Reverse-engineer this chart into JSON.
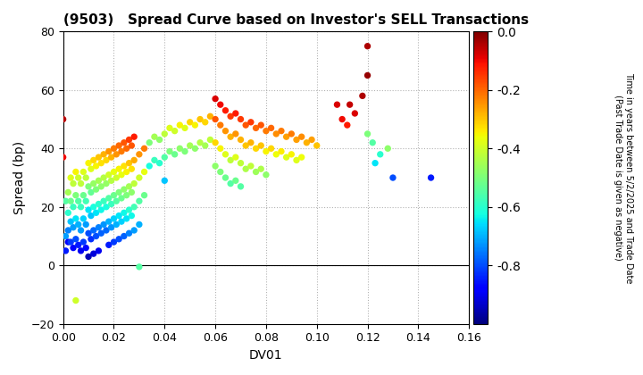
{
  "title": "(9503)   Spread Curve based on Investor's SELL Transactions",
  "xlabel": "DV01",
  "ylabel": "Spread (bp)",
  "xlim": [
    0.0,
    0.16
  ],
  "ylim": [
    -20,
    80
  ],
  "xticks": [
    0.0,
    0.02,
    0.04,
    0.06,
    0.08,
    0.1,
    0.12,
    0.14,
    0.16
  ],
  "yticks": [
    -20,
    0,
    20,
    40,
    60,
    80
  ],
  "colorbar_label": "Time in years between 5/2/2025 and Trade Date\n(Past Trade Date is given as negative)",
  "clim": [
    -1.0,
    0.0
  ],
  "cbar_ticks": [
    0.0,
    -0.2,
    -0.4,
    -0.6,
    -0.8
  ],
  "background_color": "#ffffff",
  "points": [
    [
      0.0,
      50.0,
      -0.05
    ],
    [
      0.0,
      37.0,
      -0.1
    ],
    [
      0.001,
      22.0,
      -0.55
    ],
    [
      0.001,
      10.0,
      -0.72
    ],
    [
      0.001,
      5.0,
      -0.85
    ],
    [
      0.002,
      25.0,
      -0.45
    ],
    [
      0.002,
      18.0,
      -0.6
    ],
    [
      0.002,
      12.0,
      -0.75
    ],
    [
      0.002,
      8.0,
      -0.88
    ],
    [
      0.003,
      30.0,
      -0.38
    ],
    [
      0.003,
      22.0,
      -0.52
    ],
    [
      0.003,
      15.0,
      -0.68
    ],
    [
      0.003,
      8.0,
      -0.82
    ],
    [
      0.004,
      28.0,
      -0.42
    ],
    [
      0.004,
      20.0,
      -0.58
    ],
    [
      0.004,
      13.0,
      -0.72
    ],
    [
      0.004,
      6.0,
      -0.88
    ],
    [
      0.005,
      32.0,
      -0.35
    ],
    [
      0.005,
      24.0,
      -0.5
    ],
    [
      0.005,
      16.0,
      -0.65
    ],
    [
      0.005,
      9.0,
      -0.8
    ],
    [
      0.006,
      30.0,
      -0.4
    ],
    [
      0.006,
      22.0,
      -0.55
    ],
    [
      0.006,
      14.0,
      -0.7
    ],
    [
      0.006,
      7.0,
      -0.85
    ],
    [
      0.007,
      28.0,
      -0.42
    ],
    [
      0.007,
      20.0,
      -0.58
    ],
    [
      0.007,
      12.0,
      -0.72
    ],
    [
      0.007,
      5.0,
      -0.9
    ],
    [
      0.008,
      32.0,
      -0.38
    ],
    [
      0.008,
      24.0,
      -0.52
    ],
    [
      0.008,
      16.0,
      -0.67
    ],
    [
      0.008,
      8.0,
      -0.82
    ],
    [
      0.009,
      30.0,
      -0.42
    ],
    [
      0.009,
      22.0,
      -0.57
    ],
    [
      0.009,
      14.0,
      -0.72
    ],
    [
      0.009,
      6.0,
      -0.87
    ],
    [
      0.01,
      35.0,
      -0.35
    ],
    [
      0.01,
      27.0,
      -0.5
    ],
    [
      0.01,
      19.0,
      -0.65
    ],
    [
      0.01,
      11.0,
      -0.8
    ],
    [
      0.01,
      3.0,
      -0.95
    ],
    [
      0.011,
      33.0,
      -0.38
    ],
    [
      0.011,
      25.0,
      -0.53
    ],
    [
      0.011,
      17.0,
      -0.68
    ],
    [
      0.011,
      9.0,
      -0.83
    ],
    [
      0.012,
      36.0,
      -0.32
    ],
    [
      0.012,
      28.0,
      -0.47
    ],
    [
      0.012,
      20.0,
      -0.62
    ],
    [
      0.012,
      12.0,
      -0.77
    ],
    [
      0.012,
      4.0,
      -0.92
    ],
    [
      0.013,
      34.0,
      -0.35
    ],
    [
      0.013,
      26.0,
      -0.5
    ],
    [
      0.013,
      18.0,
      -0.65
    ],
    [
      0.013,
      10.0,
      -0.8
    ],
    [
      0.014,
      37.0,
      -0.3
    ],
    [
      0.014,
      29.0,
      -0.45
    ],
    [
      0.014,
      21.0,
      -0.6
    ],
    [
      0.014,
      13.0,
      -0.75
    ],
    [
      0.014,
      5.0,
      -0.9
    ],
    [
      0.015,
      35.0,
      -0.33
    ],
    [
      0.015,
      27.0,
      -0.48
    ],
    [
      0.015,
      19.0,
      -0.63
    ],
    [
      0.015,
      11.0,
      -0.78
    ],
    [
      0.016,
      38.0,
      -0.28
    ],
    [
      0.016,
      30.0,
      -0.43
    ],
    [
      0.016,
      22.0,
      -0.58
    ],
    [
      0.016,
      14.0,
      -0.73
    ],
    [
      0.017,
      36.0,
      -0.32
    ],
    [
      0.017,
      28.0,
      -0.47
    ],
    [
      0.017,
      20.0,
      -0.62
    ],
    [
      0.017,
      12.0,
      -0.77
    ],
    [
      0.018,
      39.0,
      -0.25
    ],
    [
      0.018,
      31.0,
      -0.4
    ],
    [
      0.018,
      23.0,
      -0.55
    ],
    [
      0.018,
      15.0,
      -0.7
    ],
    [
      0.018,
      7.0,
      -0.85
    ],
    [
      0.019,
      37.0,
      -0.28
    ],
    [
      0.019,
      29.0,
      -0.43
    ],
    [
      0.019,
      21.0,
      -0.58
    ],
    [
      0.019,
      13.0,
      -0.73
    ],
    [
      0.02,
      40.0,
      -0.22
    ],
    [
      0.02,
      32.0,
      -0.37
    ],
    [
      0.02,
      24.0,
      -0.52
    ],
    [
      0.02,
      16.0,
      -0.67
    ],
    [
      0.02,
      8.0,
      -0.82
    ],
    [
      0.021,
      38.0,
      -0.25
    ],
    [
      0.021,
      30.0,
      -0.4
    ],
    [
      0.021,
      22.0,
      -0.55
    ],
    [
      0.021,
      14.0,
      -0.7
    ],
    [
      0.022,
      41.0,
      -0.2
    ],
    [
      0.022,
      33.0,
      -0.35
    ],
    [
      0.022,
      25.0,
      -0.5
    ],
    [
      0.022,
      17.0,
      -0.65
    ],
    [
      0.022,
      9.0,
      -0.8
    ],
    [
      0.023,
      39.0,
      -0.22
    ],
    [
      0.023,
      31.0,
      -0.37
    ],
    [
      0.023,
      23.0,
      -0.52
    ],
    [
      0.023,
      15.0,
      -0.67
    ],
    [
      0.024,
      42.0,
      -0.18
    ],
    [
      0.024,
      34.0,
      -0.33
    ],
    [
      0.024,
      26.0,
      -0.48
    ],
    [
      0.024,
      18.0,
      -0.63
    ],
    [
      0.024,
      10.0,
      -0.78
    ],
    [
      0.025,
      40.0,
      -0.2
    ],
    [
      0.025,
      32.0,
      -0.35
    ],
    [
      0.025,
      24.0,
      -0.5
    ],
    [
      0.025,
      16.0,
      -0.65
    ],
    [
      0.026,
      43.0,
      -0.15
    ],
    [
      0.026,
      35.0,
      -0.3
    ],
    [
      0.026,
      27.0,
      -0.45
    ],
    [
      0.026,
      19.0,
      -0.6
    ],
    [
      0.026,
      11.0,
      -0.75
    ],
    [
      0.027,
      41.0,
      -0.18
    ],
    [
      0.027,
      33.0,
      -0.33
    ],
    [
      0.027,
      25.0,
      -0.48
    ],
    [
      0.027,
      17.0,
      -0.63
    ],
    [
      0.028,
      44.0,
      -0.12
    ],
    [
      0.028,
      36.0,
      -0.27
    ],
    [
      0.028,
      28.0,
      -0.42
    ],
    [
      0.028,
      20.0,
      -0.57
    ],
    [
      0.028,
      12.0,
      -0.72
    ],
    [
      0.03,
      38.0,
      -0.25
    ],
    [
      0.03,
      30.0,
      -0.4
    ],
    [
      0.03,
      22.0,
      -0.55
    ],
    [
      0.03,
      14.0,
      -0.7
    ],
    [
      0.03,
      -0.5,
      -0.55
    ],
    [
      0.032,
      40.0,
      -0.22
    ],
    [
      0.032,
      32.0,
      -0.37
    ],
    [
      0.032,
      24.0,
      -0.52
    ],
    [
      0.034,
      42.0,
      -0.5
    ],
    [
      0.034,
      34.0,
      -0.62
    ],
    [
      0.036,
      44.0,
      -0.45
    ],
    [
      0.036,
      36.0,
      -0.58
    ],
    [
      0.038,
      43.0,
      -0.48
    ],
    [
      0.038,
      35.0,
      -0.6
    ],
    [
      0.04,
      45.0,
      -0.42
    ],
    [
      0.04,
      37.0,
      -0.55
    ],
    [
      0.04,
      29.0,
      -0.68
    ],
    [
      0.042,
      47.0,
      -0.38
    ],
    [
      0.042,
      39.0,
      -0.5
    ],
    [
      0.044,
      46.0,
      -0.4
    ],
    [
      0.044,
      38.0,
      -0.52
    ],
    [
      0.046,
      48.0,
      -0.35
    ],
    [
      0.046,
      40.0,
      -0.48
    ],
    [
      0.048,
      47.0,
      -0.38
    ],
    [
      0.048,
      39.0,
      -0.5
    ],
    [
      0.05,
      49.0,
      -0.32
    ],
    [
      0.05,
      41.0,
      -0.45
    ],
    [
      0.052,
      48.0,
      -0.35
    ],
    [
      0.052,
      40.0,
      -0.48
    ],
    [
      0.054,
      50.0,
      -0.3
    ],
    [
      0.054,
      42.0,
      -0.43
    ],
    [
      0.056,
      49.0,
      -0.32
    ],
    [
      0.056,
      41.0,
      -0.45
    ],
    [
      0.058,
      51.0,
      -0.28
    ],
    [
      0.058,
      43.0,
      -0.42
    ],
    [
      0.06,
      57.0,
      -0.08
    ],
    [
      0.06,
      50.0,
      -0.18
    ],
    [
      0.06,
      42.0,
      -0.32
    ],
    [
      0.06,
      34.0,
      -0.48
    ],
    [
      0.062,
      55.0,
      -0.1
    ],
    [
      0.062,
      48.0,
      -0.22
    ],
    [
      0.062,
      40.0,
      -0.35
    ],
    [
      0.062,
      32.0,
      -0.5
    ],
    [
      0.064,
      53.0,
      -0.12
    ],
    [
      0.064,
      46.0,
      -0.25
    ],
    [
      0.064,
      38.0,
      -0.38
    ],
    [
      0.064,
      30.0,
      -0.52
    ],
    [
      0.066,
      51.0,
      -0.15
    ],
    [
      0.066,
      44.0,
      -0.28
    ],
    [
      0.066,
      36.0,
      -0.42
    ],
    [
      0.066,
      28.0,
      -0.55
    ],
    [
      0.068,
      52.0,
      -0.12
    ],
    [
      0.068,
      45.0,
      -0.25
    ],
    [
      0.068,
      37.0,
      -0.38
    ],
    [
      0.068,
      29.0,
      -0.52
    ],
    [
      0.07,
      50.0,
      -0.15
    ],
    [
      0.07,
      43.0,
      -0.28
    ],
    [
      0.07,
      35.0,
      -0.42
    ],
    [
      0.07,
      27.0,
      -0.55
    ],
    [
      0.072,
      48.0,
      -0.18
    ],
    [
      0.072,
      41.0,
      -0.3
    ],
    [
      0.072,
      33.0,
      -0.44
    ],
    [
      0.074,
      49.0,
      -0.15
    ],
    [
      0.074,
      42.0,
      -0.28
    ],
    [
      0.074,
      34.0,
      -0.42
    ],
    [
      0.076,
      47.0,
      -0.2
    ],
    [
      0.076,
      40.0,
      -0.32
    ],
    [
      0.076,
      32.0,
      -0.46
    ],
    [
      0.078,
      48.0,
      -0.18
    ],
    [
      0.078,
      41.0,
      -0.3
    ],
    [
      0.078,
      33.0,
      -0.44
    ],
    [
      0.08,
      46.0,
      -0.22
    ],
    [
      0.08,
      39.0,
      -0.35
    ],
    [
      0.08,
      31.0,
      -0.48
    ],
    [
      0.082,
      47.0,
      -0.2
    ],
    [
      0.082,
      40.0,
      -0.32
    ],
    [
      0.084,
      45.0,
      -0.24
    ],
    [
      0.084,
      38.0,
      -0.36
    ],
    [
      0.086,
      46.0,
      -0.22
    ],
    [
      0.086,
      39.0,
      -0.34
    ],
    [
      0.088,
      44.0,
      -0.26
    ],
    [
      0.088,
      37.0,
      -0.38
    ],
    [
      0.09,
      45.0,
      -0.22
    ],
    [
      0.09,
      38.0,
      -0.35
    ],
    [
      0.092,
      43.0,
      -0.26
    ],
    [
      0.092,
      36.0,
      -0.38
    ],
    [
      0.094,
      44.0,
      -0.24
    ],
    [
      0.094,
      37.0,
      -0.36
    ],
    [
      0.096,
      42.0,
      -0.28
    ],
    [
      0.098,
      43.0,
      -0.26
    ],
    [
      0.1,
      41.0,
      -0.3
    ],
    [
      0.005,
      -12.0,
      -0.4
    ],
    [
      0.108,
      55.0,
      -0.08
    ],
    [
      0.11,
      50.0,
      -0.1
    ],
    [
      0.112,
      48.0,
      -0.12
    ],
    [
      0.113,
      55.0,
      -0.06
    ],
    [
      0.115,
      52.0,
      -0.08
    ],
    [
      0.118,
      58.0,
      -0.04
    ],
    [
      0.12,
      65.0,
      -0.02
    ],
    [
      0.12,
      75.0,
      -0.04
    ],
    [
      0.12,
      45.0,
      -0.5
    ],
    [
      0.122,
      42.0,
      -0.55
    ],
    [
      0.123,
      35.0,
      -0.65
    ],
    [
      0.125,
      38.0,
      -0.6
    ],
    [
      0.128,
      40.0,
      -0.48
    ],
    [
      0.13,
      30.0,
      -0.8
    ],
    [
      0.145,
      30.0,
      -0.85
    ]
  ]
}
